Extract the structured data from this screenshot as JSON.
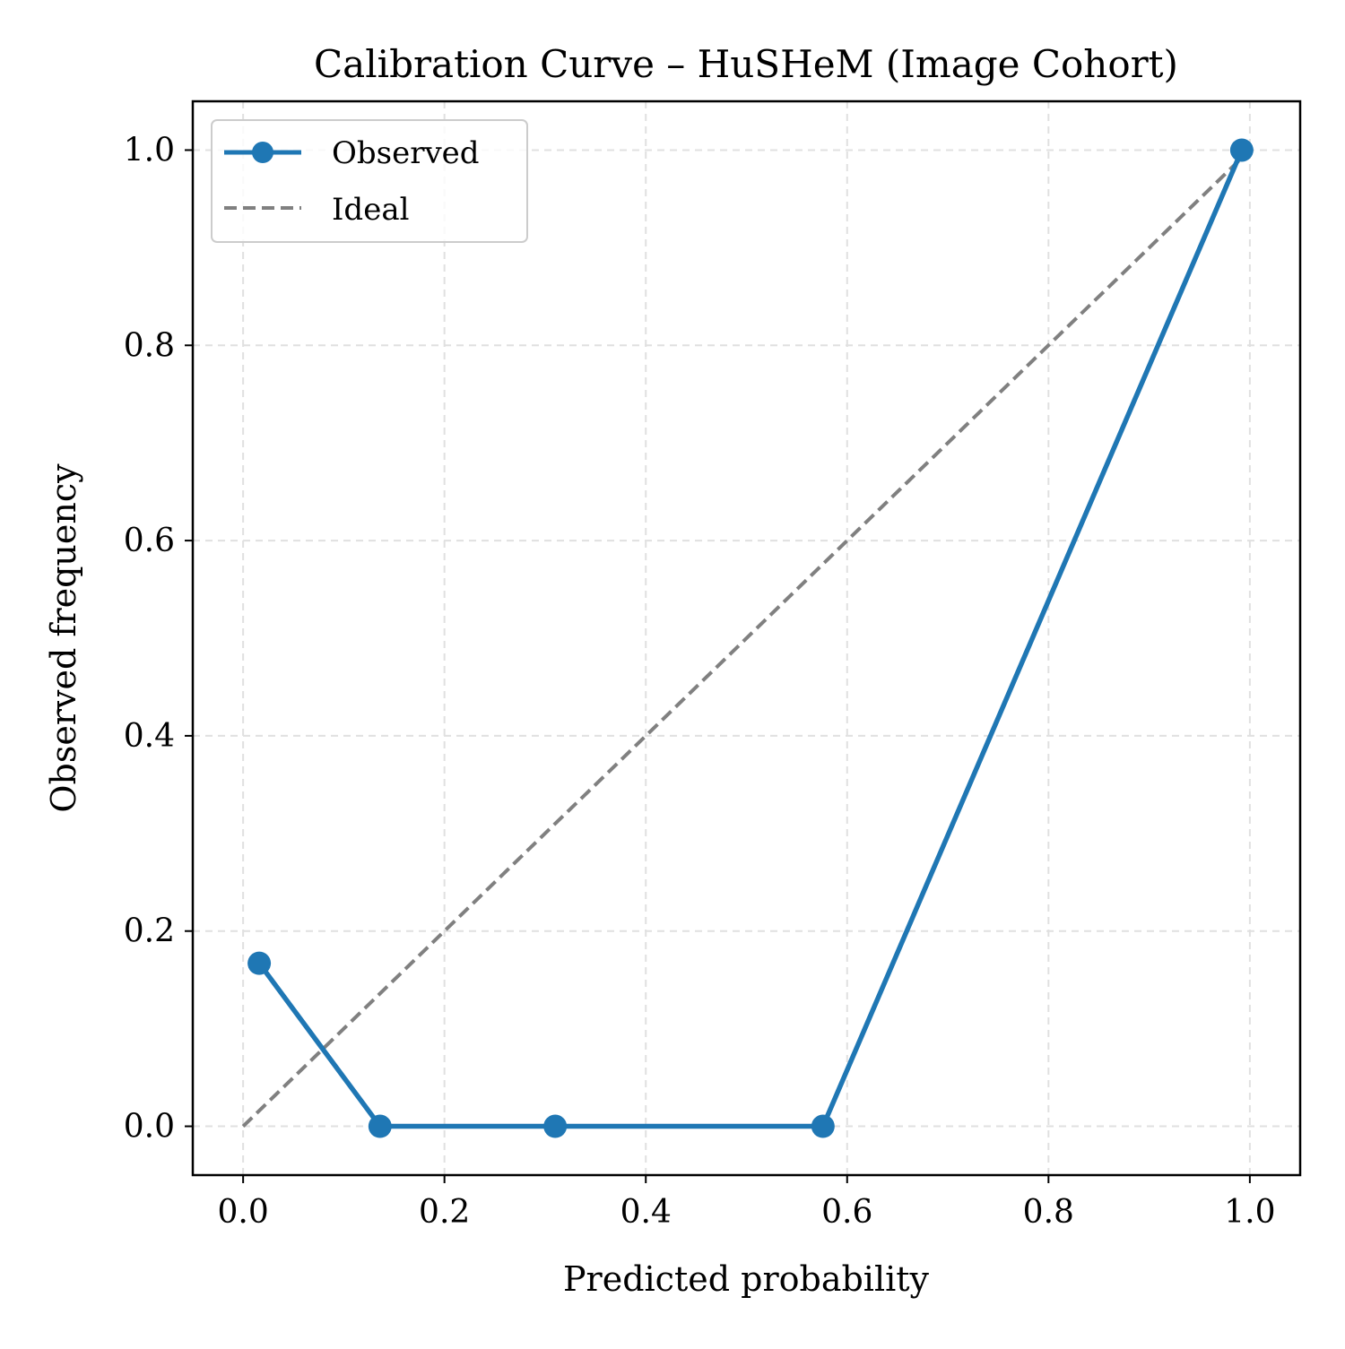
{
  "chart_data": {
    "type": "line",
    "title": "Calibration Curve – HuSHeM (Image Cohort)",
    "xlabel": "Predicted probability",
    "ylabel": "Observed frequency",
    "xlim": [
      -0.05,
      1.05
    ],
    "ylim": [
      -0.05,
      1.05
    ],
    "xticks": [
      0.0,
      0.2,
      0.4,
      0.6,
      0.8,
      1.0
    ],
    "yticks": [
      0.0,
      0.2,
      0.4,
      0.6,
      0.8,
      1.0
    ],
    "xtick_labels": [
      "0.0",
      "0.2",
      "0.4",
      "0.6",
      "0.8",
      "1.0"
    ],
    "ytick_labels": [
      "0.0",
      "0.2",
      "0.4",
      "0.6",
      "0.8",
      "1.0"
    ],
    "grid": true,
    "legend_position": "top-left",
    "series": [
      {
        "name": "Observed",
        "style": "solid-with-markers",
        "color": "#1f77b4",
        "x": [
          0.016,
          0.136,
          0.31,
          0.576,
          0.992
        ],
        "y": [
          0.167,
          0.0,
          0.0,
          0.0,
          1.0
        ]
      },
      {
        "name": "Ideal",
        "style": "dashed",
        "color": "#808080",
        "x": [
          0.0,
          1.0
        ],
        "y": [
          0.0,
          1.0
        ]
      }
    ]
  }
}
